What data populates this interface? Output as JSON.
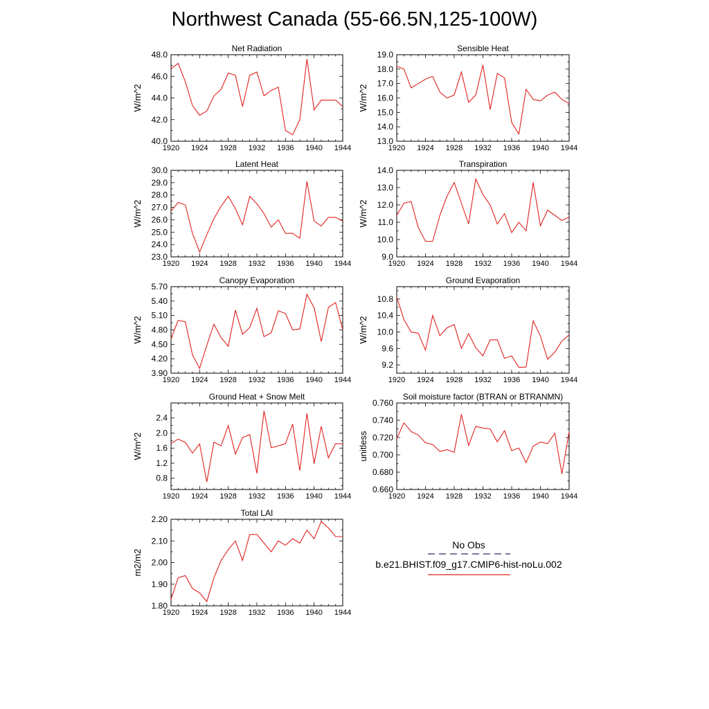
{
  "figure": {
    "title": "Northwest Canada (55-66.5N,125-100W)",
    "legend": {
      "obs_label": "No Obs",
      "model_label": "b.e21.BHIST.f09_g17.CMIP6-hist-noLu.002",
      "obs_color": "#2a2a6e",
      "model_color": "#e0211f"
    }
  },
  "chart_data": [
    {
      "type": "line",
      "title": "Net Radiation",
      "ylabel": "W/m^2",
      "x": [
        1920,
        1921,
        1922,
        1923,
        1924,
        1925,
        1926,
        1927,
        1928,
        1929,
        1930,
        1931,
        1932,
        1933,
        1934,
        1935,
        1936,
        1937,
        1938,
        1939,
        1940,
        1941,
        1942,
        1943,
        1944
      ],
      "series": [
        {
          "values": [
            46.7,
            47.2,
            45.5,
            43.3,
            42.4,
            42.8,
            44.2,
            44.8,
            46.3,
            46.1,
            43.2,
            46.1,
            46.4,
            44.2,
            44.7,
            45.0,
            41.0,
            40.6,
            42.0,
            47.6,
            42.9,
            43.8,
            43.8,
            43.8,
            43.2
          ]
        }
      ],
      "xlim": [
        1920,
        1944
      ],
      "ylim": [
        40.0,
        48.0
      ],
      "xticks": [
        1920,
        1924,
        1928,
        1932,
        1936,
        1940,
        1944
      ],
      "yticks": [
        40.0,
        42.0,
        44.0,
        46.0,
        48.0
      ],
      "ytick_labels": [
        "40.0",
        "42.0",
        "44.0",
        "46.0",
        "48.0"
      ],
      "color": "#e0211f"
    },
    {
      "type": "line",
      "title": "Sensible Heat",
      "ylabel": "W/m^2",
      "x": [
        1920,
        1921,
        1922,
        1923,
        1924,
        1925,
        1926,
        1927,
        1928,
        1929,
        1930,
        1931,
        1932,
        1933,
        1934,
        1935,
        1936,
        1937,
        1938,
        1939,
        1940,
        1941,
        1942,
        1943,
        1944
      ],
      "series": [
        {
          "values": [
            18.2,
            18.0,
            16.7,
            17.0,
            17.3,
            17.5,
            16.4,
            16.0,
            16.2,
            17.8,
            15.7,
            16.2,
            18.3,
            15.2,
            17.7,
            17.4,
            14.3,
            13.5,
            16.6,
            15.9,
            15.8,
            16.2,
            16.4,
            15.9,
            15.6
          ]
        }
      ],
      "xlim": [
        1920,
        1944
      ],
      "ylim": [
        13.0,
        19.0
      ],
      "xticks": [
        1920,
        1924,
        1928,
        1932,
        1936,
        1940,
        1944
      ],
      "yticks": [
        13.0,
        14.0,
        15.0,
        16.0,
        17.0,
        18.0,
        19.0
      ],
      "ytick_labels": [
        "13.0",
        "14.0",
        "15.0",
        "16.0",
        "17.0",
        "18.0",
        "19.0"
      ],
      "color": "#e0211f"
    },
    {
      "type": "line",
      "title": "Latent Heat",
      "ylabel": "W/m^2",
      "x": [
        1920,
        1921,
        1922,
        1923,
        1924,
        1925,
        1926,
        1927,
        1928,
        1929,
        1930,
        1931,
        1932,
        1933,
        1934,
        1935,
        1936,
        1937,
        1938,
        1939,
        1940,
        1941,
        1942,
        1943,
        1944
      ],
      "series": [
        {
          "values": [
            26.7,
            27.4,
            27.2,
            24.9,
            23.4,
            24.8,
            26.1,
            27.1,
            27.9,
            26.9,
            25.6,
            27.9,
            27.3,
            26.5,
            25.4,
            26.0,
            24.9,
            24.9,
            24.5,
            29.1,
            25.9,
            25.5,
            26.2,
            26.2,
            25.9
          ]
        }
      ],
      "xlim": [
        1920,
        1944
      ],
      "ylim": [
        23.0,
        30.0
      ],
      "xticks": [
        1920,
        1924,
        1928,
        1932,
        1936,
        1940,
        1944
      ],
      "yticks": [
        23.0,
        24.0,
        25.0,
        26.0,
        27.0,
        28.0,
        29.0,
        30.0
      ],
      "ytick_labels": [
        "23.0",
        "24.0",
        "25.0",
        "26.0",
        "27.0",
        "28.0",
        "29.0",
        "30.0"
      ],
      "color": "#e0211f"
    },
    {
      "type": "line",
      "title": "Transpiration",
      "ylabel": "W/m^2",
      "x": [
        1920,
        1921,
        1922,
        1923,
        1924,
        1925,
        1926,
        1927,
        1928,
        1929,
        1930,
        1931,
        1932,
        1933,
        1934,
        1935,
        1936,
        1937,
        1938,
        1939,
        1940,
        1941,
        1942,
        1943,
        1944
      ],
      "series": [
        {
          "values": [
            11.4,
            12.1,
            12.2,
            10.7,
            9.9,
            9.9,
            11.4,
            12.5,
            13.3,
            12.1,
            10.9,
            13.5,
            12.6,
            12.0,
            10.9,
            11.5,
            10.4,
            11.0,
            10.5,
            13.3,
            10.8,
            11.7,
            11.4,
            11.1,
            11.3
          ]
        }
      ],
      "xlim": [
        1920,
        1944
      ],
      "ylim": [
        9.0,
        14.0
      ],
      "xticks": [
        1920,
        1924,
        1928,
        1932,
        1936,
        1940,
        1944
      ],
      "yticks": [
        9.0,
        10.0,
        11.0,
        12.0,
        13.0,
        14.0
      ],
      "ytick_labels": [
        "9.0",
        "10.0",
        "11.0",
        "12.0",
        "13.0",
        "14.0"
      ],
      "color": "#e0211f"
    },
    {
      "type": "line",
      "title": "Canopy Evaporation",
      "ylabel": "W/m^2",
      "x": [
        1920,
        1921,
        1922,
        1923,
        1924,
        1925,
        1926,
        1927,
        1928,
        1929,
        1930,
        1931,
        1932,
        1933,
        1934,
        1935,
        1936,
        1937,
        1938,
        1939,
        1940,
        1941,
        1942,
        1943,
        1944
      ],
      "series": [
        {
          "values": [
            4.62,
            5.0,
            4.97,
            4.28,
            4.0,
            4.48,
            4.92,
            4.64,
            4.46,
            5.21,
            4.71,
            4.85,
            5.25,
            4.66,
            4.74,
            5.2,
            5.14,
            4.8,
            4.82,
            5.54,
            5.26,
            4.56,
            5.27,
            5.37,
            4.8
          ]
        }
      ],
      "xlim": [
        1920,
        1944
      ],
      "ylim": [
        3.9,
        5.7
      ],
      "xticks": [
        1920,
        1924,
        1928,
        1932,
        1936,
        1940,
        1944
      ],
      "yticks": [
        3.9,
        4.2,
        4.5,
        4.8,
        5.1,
        5.4,
        5.7
      ],
      "ytick_labels": [
        "3.90",
        "4.20",
        "4.50",
        "4.80",
        "5.10",
        "5.40",
        "5.70"
      ],
      "color": "#e0211f"
    },
    {
      "type": "line",
      "title": "Ground Evaporation",
      "ylabel": "W/m^2",
      "x": [
        1920,
        1921,
        1922,
        1923,
        1924,
        1925,
        1926,
        1927,
        1928,
        1929,
        1930,
        1931,
        1932,
        1933,
        1934,
        1935,
        1936,
        1937,
        1938,
        1939,
        1940,
        1941,
        1942,
        1943,
        1944
      ],
      "series": [
        {
          "values": [
            10.85,
            10.3,
            10.0,
            9.97,
            9.56,
            10.4,
            9.91,
            10.1,
            10.18,
            9.6,
            9.96,
            9.62,
            9.42,
            9.81,
            9.81,
            9.36,
            9.42,
            9.14,
            9.15,
            10.27,
            9.9,
            9.34,
            9.51,
            9.78,
            9.93
          ]
        }
      ],
      "xlim": [
        1920,
        1944
      ],
      "ylim": [
        9.0,
        11.1
      ],
      "xticks": [
        1920,
        1924,
        1928,
        1932,
        1936,
        1940,
        1944
      ],
      "yticks": [
        9.2,
        9.6,
        10.0,
        10.4,
        10.8
      ],
      "ytick_labels": [
        "9.2",
        "9.6",
        "10.0",
        "10.4",
        "10.8"
      ],
      "color": "#e0211f"
    },
    {
      "type": "line",
      "title": "Ground Heat + Snow Melt",
      "ylabel": "W/m^2",
      "x": [
        1920,
        1921,
        1922,
        1923,
        1924,
        1925,
        1926,
        1927,
        1928,
        1929,
        1930,
        1931,
        1932,
        1933,
        1934,
        1935,
        1936,
        1937,
        1938,
        1939,
        1940,
        1941,
        1942,
        1943,
        1944
      ],
      "series": [
        {
          "values": [
            1.72,
            1.84,
            1.75,
            1.47,
            1.71,
            0.7,
            1.76,
            1.66,
            2.2,
            1.44,
            1.88,
            1.96,
            0.93,
            2.59,
            1.61,
            1.66,
            1.72,
            2.24,
            1.0,
            2.52,
            1.19,
            2.18,
            1.34,
            1.72,
            1.71
          ]
        }
      ],
      "xlim": [
        1920,
        1944
      ],
      "ylim": [
        0.5,
        2.8
      ],
      "xticks": [
        1920,
        1924,
        1928,
        1932,
        1936,
        1940,
        1944
      ],
      "yticks": [
        0.8,
        1.2,
        1.6,
        2.0,
        2.4
      ],
      "ytick_labels": [
        "0.8",
        "1.2",
        "1.6",
        "2.0",
        "2.4"
      ],
      "color": "#e0211f"
    },
    {
      "type": "line",
      "title": "Soil moisture factor (BTRAN or BTRANMN)",
      "ylabel": "unitless",
      "x": [
        1920,
        1921,
        1922,
        1923,
        1924,
        1925,
        1926,
        1927,
        1928,
        1929,
        1930,
        1931,
        1932,
        1933,
        1934,
        1935,
        1936,
        1937,
        1938,
        1939,
        1940,
        1941,
        1942,
        1943,
        1944
      ],
      "series": [
        {
          "values": [
            0.719,
            0.737,
            0.727,
            0.723,
            0.714,
            0.712,
            0.704,
            0.706,
            0.703,
            0.747,
            0.711,
            0.733,
            0.731,
            0.73,
            0.715,
            0.728,
            0.705,
            0.708,
            0.691,
            0.71,
            0.715,
            0.713,
            0.725,
            0.678,
            0.727
          ]
        }
      ],
      "xlim": [
        1920,
        1944
      ],
      "ylim": [
        0.66,
        0.76
      ],
      "xticks": [
        1920,
        1924,
        1928,
        1932,
        1936,
        1940,
        1944
      ],
      "yticks": [
        0.66,
        0.68,
        0.7,
        0.72,
        0.74,
        0.76
      ],
      "ytick_labels": [
        "0.660",
        "0.680",
        "0.700",
        "0.720",
        "0.740",
        "0.760"
      ],
      "color": "#e0211f"
    },
    {
      "type": "line",
      "title": "Total LAI",
      "ylabel": "m2/m2",
      "x": [
        1920,
        1921,
        1922,
        1923,
        1924,
        1925,
        1926,
        1927,
        1928,
        1929,
        1930,
        1931,
        1932,
        1933,
        1934,
        1935,
        1936,
        1937,
        1938,
        1939,
        1940,
        1941,
        1942,
        1943,
        1944
      ],
      "series": [
        {
          "values": [
            1.83,
            1.93,
            1.94,
            1.88,
            1.86,
            1.82,
            1.93,
            2.01,
            2.06,
            2.1,
            2.01,
            2.13,
            2.13,
            2.09,
            2.05,
            2.1,
            2.08,
            2.11,
            2.09,
            2.15,
            2.11,
            2.19,
            2.16,
            2.12,
            2.12
          ]
        }
      ],
      "xlim": [
        1920,
        1944
      ],
      "ylim": [
        1.8,
        2.2
      ],
      "xticks": [
        1920,
        1924,
        1928,
        1932,
        1936,
        1940,
        1944
      ],
      "yticks": [
        1.8,
        1.9,
        2.0,
        2.1,
        2.2
      ],
      "ytick_labels": [
        "1.80",
        "1.90",
        "2.00",
        "2.10",
        "2.20"
      ],
      "color": "#e0211f"
    }
  ]
}
